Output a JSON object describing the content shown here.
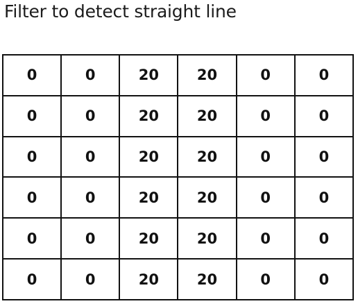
{
  "title": "Filter to detect straight line",
  "matrix": [
    [
      "0",
      "0",
      "20",
      "20",
      "0",
      "0"
    ],
    [
      "0",
      "0",
      "20",
      "20",
      "0",
      "0"
    ],
    [
      "0",
      "0",
      "20",
      "20",
      "0",
      "0"
    ],
    [
      "0",
      "0",
      "20",
      "20",
      "0",
      "0"
    ],
    [
      "0",
      "0",
      "20",
      "20",
      "0",
      "0"
    ],
    [
      "0",
      "0",
      "20",
      "20",
      "0",
      "0"
    ]
  ]
}
